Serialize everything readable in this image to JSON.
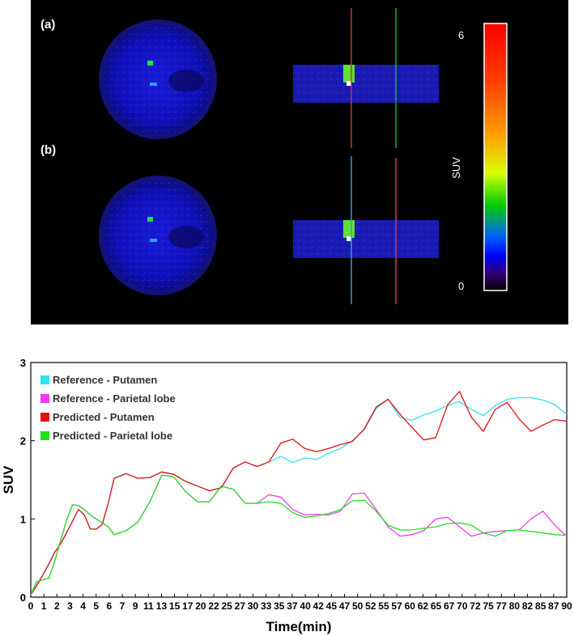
{
  "pet_figure": {
    "panel_labels": [
      "(a)",
      "(b)"
    ],
    "colorbar": {
      "label": "SUV",
      "min_label": "0",
      "max_label": "6",
      "colors": [
        "#ff0000",
        "#ff7a00",
        "#ffdf00",
        "#b8ff00",
        "#00d000",
        "#0080ff",
        "#0000ff",
        "#2a0080",
        "#000000"
      ]
    },
    "guide_line_colors": {
      "a_left": "#c0392b",
      "a_right": "#1faa3a",
      "b_left": "#3498db",
      "b_right": "#d6336c"
    }
  },
  "chart_data": {
    "type": "line",
    "xlabel": "Time(min)",
    "ylabel": "SUV",
    "ylim": [
      0,
      3
    ],
    "yticks": [
      "0",
      "1",
      "2",
      "3"
    ],
    "xticks": [
      "0",
      "1",
      "2",
      "3",
      "4",
      "5",
      "6",
      "7",
      "9",
      "11",
      "13",
      "15",
      "17",
      "20",
      "22",
      "25",
      "27",
      "30",
      "33",
      "35",
      "37",
      "40",
      "42",
      "45",
      "47",
      "50",
      "52",
      "55",
      "57",
      "60",
      "62",
      "65",
      "67",
      "70",
      "72",
      "75",
      "77",
      "80",
      "82",
      "85",
      "87",
      "90"
    ],
    "legend_position": "top-left",
    "series": [
      {
        "name": "Reference - Putamen",
        "color": "#33e0f0",
        "x": [
          0,
          0.5,
          1,
          1.5,
          2,
          2.5,
          3,
          3.5,
          4,
          4.5,
          5,
          5.5,
          6,
          6.5,
          7,
          8,
          9,
          10,
          11,
          12,
          13,
          14,
          15,
          16,
          17,
          18,
          19,
          20,
          21,
          22,
          23,
          24,
          25,
          26,
          27,
          28,
          29,
          30,
          31,
          32,
          33,
          34,
          35,
          36,
          37,
          38,
          39,
          40,
          41,
          42,
          43,
          44,
          45
        ],
        "y": [
          0.03,
          0.15,
          0.28,
          0.42,
          0.57,
          0.68,
          0.82,
          0.97,
          1.12,
          1.05,
          0.87,
          0.87,
          0.93,
          1.2,
          1.52,
          1.58,
          1.52,
          1.53,
          1.6,
          1.57,
          1.48,
          1.42,
          1.36,
          1.4,
          1.65,
          1.73,
          1.67,
          1.73,
          1.8,
          1.72,
          1.78,
          1.76,
          1.84,
          1.9,
          2.0,
          2.14,
          2.41,
          2.53,
          2.3,
          2.26,
          2.33,
          2.38,
          2.45,
          2.5,
          2.4,
          2.32,
          2.45,
          2.53,
          2.55,
          2.55,
          2.52,
          2.46,
          2.34
        ]
      },
      {
        "name": "Reference - Parietal lobe",
        "color": "#f03cf0",
        "x": [
          0,
          0.5,
          1,
          1.5,
          2,
          2.5,
          3,
          3.5,
          4,
          4.5,
          5,
          5.5,
          6,
          6.5,
          7,
          8,
          9,
          10,
          11,
          12,
          13,
          14,
          15,
          16,
          17,
          18,
          19,
          20,
          21,
          22,
          23,
          24,
          25,
          26,
          27,
          28,
          29,
          30,
          31,
          32,
          33,
          34,
          35,
          36,
          37,
          38,
          39,
          40,
          41,
          42,
          43,
          44,
          45
        ],
        "y": [
          0.03,
          0.2,
          0.22,
          0.24,
          0.45,
          0.72,
          0.98,
          1.18,
          1.17,
          1.12,
          1.05,
          1.0,
          0.95,
          0.9,
          0.8,
          0.85,
          0.96,
          1.22,
          1.56,
          1.54,
          1.35,
          1.22,
          1.22,
          1.42,
          1.38,
          1.2,
          1.2,
          1.31,
          1.28,
          1.12,
          1.05,
          1.06,
          1.05,
          1.1,
          1.32,
          1.33,
          1.12,
          0.9,
          0.78,
          0.8,
          0.85,
          1.0,
          1.02,
          0.9,
          0.78,
          0.82,
          0.84,
          0.85,
          0.86,
          1.0,
          1.1,
          0.92,
          0.78
        ]
      },
      {
        "name": "Predicted - Putamen",
        "color": "#e01010",
        "x": [
          0,
          0.5,
          1,
          1.5,
          2,
          2.5,
          3,
          3.5,
          4,
          4.5,
          5,
          5.5,
          6,
          6.5,
          7,
          8,
          9,
          10,
          11,
          12,
          13,
          14,
          15,
          16,
          17,
          18,
          19,
          20,
          21,
          22,
          23,
          24,
          25,
          26,
          27,
          28,
          29,
          30,
          31,
          32,
          33,
          34,
          35,
          36,
          37,
          38,
          39,
          40,
          41,
          42,
          43,
          44,
          45
        ],
        "y": [
          0.03,
          0.15,
          0.28,
          0.42,
          0.57,
          0.68,
          0.82,
          0.97,
          1.12,
          1.05,
          0.87,
          0.87,
          0.93,
          1.2,
          1.52,
          1.58,
          1.52,
          1.53,
          1.6,
          1.57,
          1.48,
          1.42,
          1.36,
          1.4,
          1.65,
          1.73,
          1.67,
          1.73,
          1.97,
          2.02,
          1.9,
          1.86,
          1.9,
          1.95,
          1.99,
          2.15,
          2.43,
          2.53,
          2.34,
          2.17,
          2.01,
          2.04,
          2.46,
          2.63,
          2.3,
          2.12,
          2.4,
          2.49,
          2.28,
          2.12,
          2.2,
          2.27,
          2.25
        ]
      },
      {
        "name": "Predicted - Parietal lobe",
        "color": "#22e022",
        "x": [
          0,
          0.5,
          1,
          1.5,
          2,
          2.5,
          3,
          3.5,
          4,
          4.5,
          5,
          5.5,
          6,
          6.5,
          7,
          8,
          9,
          10,
          11,
          12,
          13,
          14,
          15,
          16,
          17,
          18,
          19,
          20,
          21,
          22,
          23,
          24,
          25,
          26,
          27,
          28,
          29,
          30,
          31,
          32,
          33,
          34,
          35,
          36,
          37,
          38,
          39,
          40,
          41,
          42,
          43,
          44,
          45
        ],
        "y": [
          0.03,
          0.2,
          0.22,
          0.24,
          0.45,
          0.72,
          0.98,
          1.18,
          1.17,
          1.12,
          1.05,
          1.0,
          0.95,
          0.9,
          0.8,
          0.85,
          0.96,
          1.22,
          1.56,
          1.54,
          1.35,
          1.22,
          1.22,
          1.42,
          1.38,
          1.2,
          1.2,
          1.22,
          1.2,
          1.08,
          1.02,
          1.04,
          1.07,
          1.12,
          1.23,
          1.24,
          1.1,
          0.92,
          0.86,
          0.86,
          0.88,
          0.9,
          0.94,
          0.95,
          0.92,
          0.82,
          0.78,
          0.85,
          0.86,
          0.84,
          0.82,
          0.8,
          0.79
        ]
      }
    ]
  }
}
